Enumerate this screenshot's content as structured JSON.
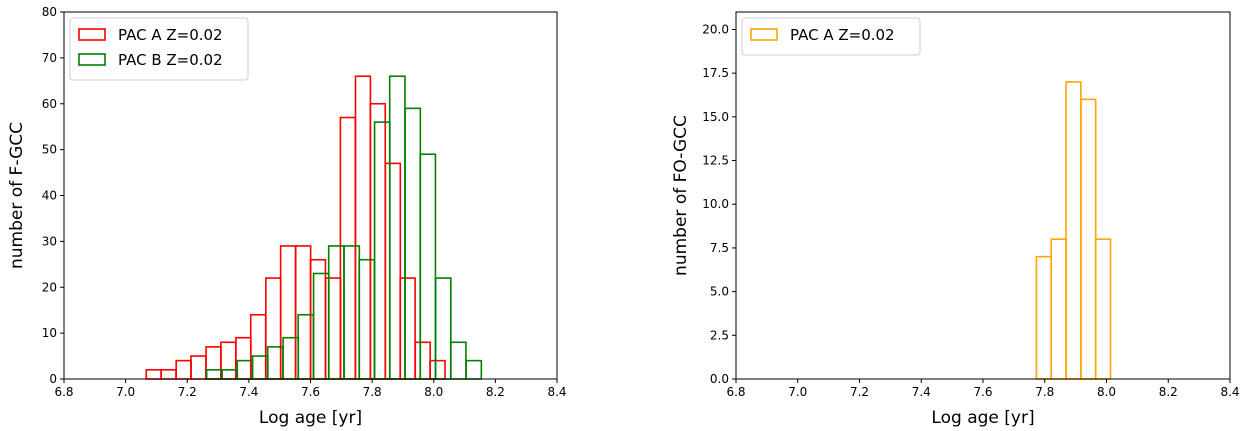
{
  "chart_data": [
    {
      "type": "histogram",
      "xlabel": "Log age [yr]",
      "ylabel": "number of F-GCC",
      "xlim": [
        6.8,
        8.4
      ],
      "ylim": [
        0,
        80
      ],
      "xticks": [
        "6.8",
        "7.0",
        "7.2",
        "7.4",
        "7.6",
        "7.8",
        "8.0",
        "8.2",
        "8.4"
      ],
      "yticks": [
        "0",
        "10",
        "20",
        "30",
        "40",
        "50",
        "60",
        "70",
        "80"
      ],
      "legend_position": "top-left",
      "grid": false,
      "series": [
        {
          "name": "PAC A Z=0.02",
          "color": "#ff0000",
          "bin_width": 0.0485,
          "bin_starts": [
            7.067,
            7.115,
            7.164,
            7.212,
            7.261,
            7.309,
            7.358,
            7.406,
            7.455,
            7.503,
            7.552,
            7.6,
            7.649,
            7.697,
            7.746,
            7.794,
            7.843,
            7.891,
            7.94,
            7.988,
            8.037,
            8.085,
            8.134
          ],
          "counts": [
            2,
            2,
            4,
            5,
            7,
            8,
            9,
            14,
            22,
            29,
            29,
            26,
            22,
            57,
            66,
            60,
            47,
            22,
            8,
            4,
            0,
            0,
            0
          ]
        },
        {
          "name": "PAC B Z=0.02",
          "color": "#008000",
          "bin_width": 0.0495,
          "bin_starts": [
            7.263,
            7.313,
            7.362,
            7.412,
            7.461,
            7.511,
            7.56,
            7.61,
            7.659,
            7.709,
            7.758,
            7.808,
            7.857,
            7.907,
            7.956,
            8.006,
            8.055,
            8.105,
            8.154,
            8.204,
            8.253
          ],
          "counts": [
            2,
            2,
            4,
            5,
            7,
            9,
            14,
            23,
            29,
            29,
            26,
            56,
            66,
            59,
            49,
            22,
            8,
            4,
            0,
            0,
            0
          ]
        }
      ]
    },
    {
      "type": "histogram",
      "xlabel": "Log age [yr]",
      "ylabel": "number of FO-GCC",
      "xlim": [
        6.8,
        8.4
      ],
      "ylim": [
        0,
        21
      ],
      "xticks": [
        "6.8",
        "7.0",
        "7.2",
        "7.4",
        "7.6",
        "7.8",
        "8.0",
        "8.2",
        "8.4"
      ],
      "yticks": [
        "0.0",
        "2.5",
        "5.0",
        "7.5",
        "10.0",
        "12.5",
        "15.0",
        "17.5",
        "20.0"
      ],
      "legend_position": "top-left",
      "grid": false,
      "series": [
        {
          "name": "PAC A Z=0.02",
          "color": "#ffa500",
          "bin_width": 0.048,
          "bin_starts": [
            7.773,
            7.821,
            7.869,
            7.917,
            7.965
          ],
          "counts": [
            7,
            8,
            17,
            16,
            8
          ]
        }
      ]
    }
  ]
}
